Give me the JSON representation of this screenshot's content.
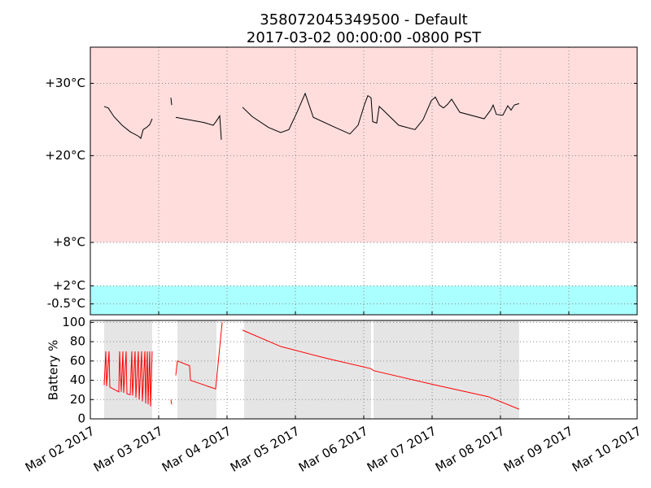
{
  "chart_data": [
    {
      "type": "line",
      "title": "358072045349500 - Default",
      "subtitle": "2017-03-02 00:00:00 -0800 PST",
      "ylim": [
        -2,
        35
      ],
      "yticks": [
        {
          "value": 30,
          "label": "+30°C"
        },
        {
          "value": 20,
          "label": "+20°C"
        },
        {
          "value": 8,
          "label": "+8°C"
        },
        {
          "value": 2,
          "label": "+2°C"
        },
        {
          "value": -0.5,
          "label": "-0.5°C"
        }
      ],
      "grid": true,
      "bands": [
        {
          "low": 8,
          "high": 35,
          "color": "#ffdddd"
        },
        {
          "low": -2,
          "high": 2,
          "color": "#aaffff"
        }
      ],
      "color": "#000000",
      "x": [
        "2017-03-02 04:51",
        "2017-03-02 06:17",
        "2017-03-02 08:17",
        "2017-03-02 11:09",
        "2017-03-02 14:00",
        "2017-03-02 16:51",
        "2017-03-02 17:43",
        "2017-03-02 18:34",
        "2017-03-02 19:43",
        "2017-03-02 20:51",
        "2017-03-02 21:43",
        null,
        "2017-03-03 04:17",
        "2017-03-03 04:34",
        null,
        "2017-03-03 06:00",
        "2017-03-03 10:00",
        "2017-03-03 15:43",
        "2017-03-03 19:09",
        "2017-03-03 20:17",
        "2017-03-03 21:26",
        "2017-03-03 22:00",
        null,
        "2017-03-04 05:26",
        "2017-03-04 08:51",
        "2017-03-04 14:34",
        "2017-03-04 18:51",
        "2017-03-04 21:43",
        "2017-03-05 00:34",
        "2017-03-05 03:26",
        "2017-03-05 06:17",
        "2017-03-05 13:26",
        "2017-03-05 19:09",
        "2017-03-05 22:00",
        "2017-03-06 00:17",
        "2017-03-06 01:26",
        "2017-03-06 02:34",
        "2017-03-06 03:09",
        "2017-03-06 04:34",
        "2017-03-06 05:26",
        "2017-03-06 06:34",
        "2017-03-06 12:17",
        "2017-03-06 18:00",
        "2017-03-06 20:51",
        "2017-03-06 23:43",
        "2017-03-07 01:09",
        "2017-03-07 02:34",
        "2017-03-07 04:00",
        "2017-03-07 05:26",
        "2017-03-07 06:51",
        "2017-03-07 09:43",
        "2017-03-07 18:17",
        "2017-03-07 20:34",
        "2017-03-07 21:26",
        "2017-03-07 22:34",
        "2017-03-08 00:51",
        "2017-03-08 02:34",
        "2017-03-08 03:43",
        "2017-03-08 04:51",
        "2017-03-08 06:34"
      ],
      "values": [
        26.8,
        26.6,
        25.4,
        24.2,
        23.3,
        22.7,
        22.4,
        23.6,
        23.9,
        24.3,
        25.1,
        null,
        28.0,
        27.0,
        null,
        25.3,
        25.0,
        24.6,
        24.2,
        24.8,
        25.5,
        22.2,
        null,
        26.7,
        25.4,
        23.9,
        23.2,
        23.6,
        26.0,
        28.6,
        25.3,
        24.0,
        23.0,
        24.2,
        27.1,
        28.3,
        28.0,
        24.7,
        24.5,
        26.8,
        26.4,
        24.2,
        23.6,
        25.0,
        27.6,
        28.1,
        27.0,
        26.6,
        27.1,
        27.8,
        26.0,
        25.1,
        26.3,
        27.0,
        25.7,
        25.6,
        26.9,
        26.3,
        27.0,
        27.2
      ]
    },
    {
      "type": "line",
      "ylabel": "Battery %",
      "xlim": [
        "2017-03-02",
        "2017-03-10"
      ],
      "xticks": [
        {
          "value": "2017-03-02",
          "label": "Mar 02 2017"
        },
        {
          "value": "2017-03-03",
          "label": "Mar 03 2017"
        },
        {
          "value": "2017-03-04",
          "label": "Mar 04 2017"
        },
        {
          "value": "2017-03-05",
          "label": "Mar 05 2017"
        },
        {
          "value": "2017-03-06",
          "label": "Mar 06 2017"
        },
        {
          "value": "2017-03-07",
          "label": "Mar 07 2017"
        },
        {
          "value": "2017-03-08",
          "label": "Mar 08 2017"
        },
        {
          "value": "2017-03-09",
          "label": "Mar 09 2017"
        },
        {
          "value": "2017-03-10",
          "label": "Mar 10 2017"
        }
      ],
      "ylim": [
        0,
        102
      ],
      "yticks": [
        0,
        20,
        40,
        60,
        80,
        100
      ],
      "grid": true,
      "spans": [
        {
          "start": "2017-03-02 04:51",
          "end": "2017-03-02 21:43"
        },
        {
          "start": "2017-03-03 06:34",
          "end": "2017-03-03 20:17"
        },
        {
          "start": "2017-03-04 06:00",
          "end": "2017-03-06 02:34"
        },
        {
          "start": "2017-03-06 03:26",
          "end": "2017-03-08 06:34"
        }
      ],
      "span_color": "#e5e5e5",
      "color": "#ff0000",
      "x": [
        "2017-03-02 04:51",
        "2017-03-02 05:26",
        "2017-03-02 05:43",
        "2017-03-02 06:34",
        "2017-03-02 06:51",
        "2017-03-02 07:26",
        "2017-03-02 10:00",
        "2017-03-02 10:17",
        "2017-03-02 10:51",
        "2017-03-02 11:26",
        "2017-03-02 11:43",
        "2017-03-02 12:34",
        "2017-03-02 12:51",
        "2017-03-02 14:00",
        "2017-03-02 14:34",
        "2017-03-02 14:51",
        "2017-03-02 15:43",
        "2017-03-02 16:00",
        "2017-03-02 16:51",
        "2017-03-02 17:09",
        "2017-03-02 18:00",
        "2017-03-02 18:17",
        "2017-03-02 19:09",
        "2017-03-02 19:26",
        "2017-03-02 20:00",
        "2017-03-02 20:17",
        "2017-03-02 20:51",
        "2017-03-02 21:09",
        "2017-03-02 21:43",
        null,
        "2017-03-03 04:17",
        "2017-03-03 04:34",
        null,
        "2017-03-03 06:00",
        "2017-03-03 06:34",
        "2017-03-03 10:51",
        "2017-03-03 11:09",
        "2017-03-03 20:00",
        "2017-03-03 22:17",
        null,
        "2017-03-04 05:26",
        "2017-03-04 18:51",
        "2017-03-05 10:34",
        "2017-03-06 02:34",
        "2017-03-06 03:26",
        "2017-03-06 23:43",
        "2017-03-07 19:43",
        "2017-03-08 06:34"
      ],
      "values": [
        35,
        70,
        34,
        70,
        33,
        32,
        28,
        70,
        28,
        70,
        27,
        70,
        26,
        25,
        70,
        24,
        70,
        22,
        70,
        20,
        70,
        18,
        70,
        16,
        70,
        15,
        70,
        13,
        70,
        null,
        20,
        15,
        null,
        45,
        60,
        55,
        40,
        31,
        100,
        null,
        92,
        75,
        63,
        52,
        50,
        36,
        23,
        10
      ]
    }
  ]
}
